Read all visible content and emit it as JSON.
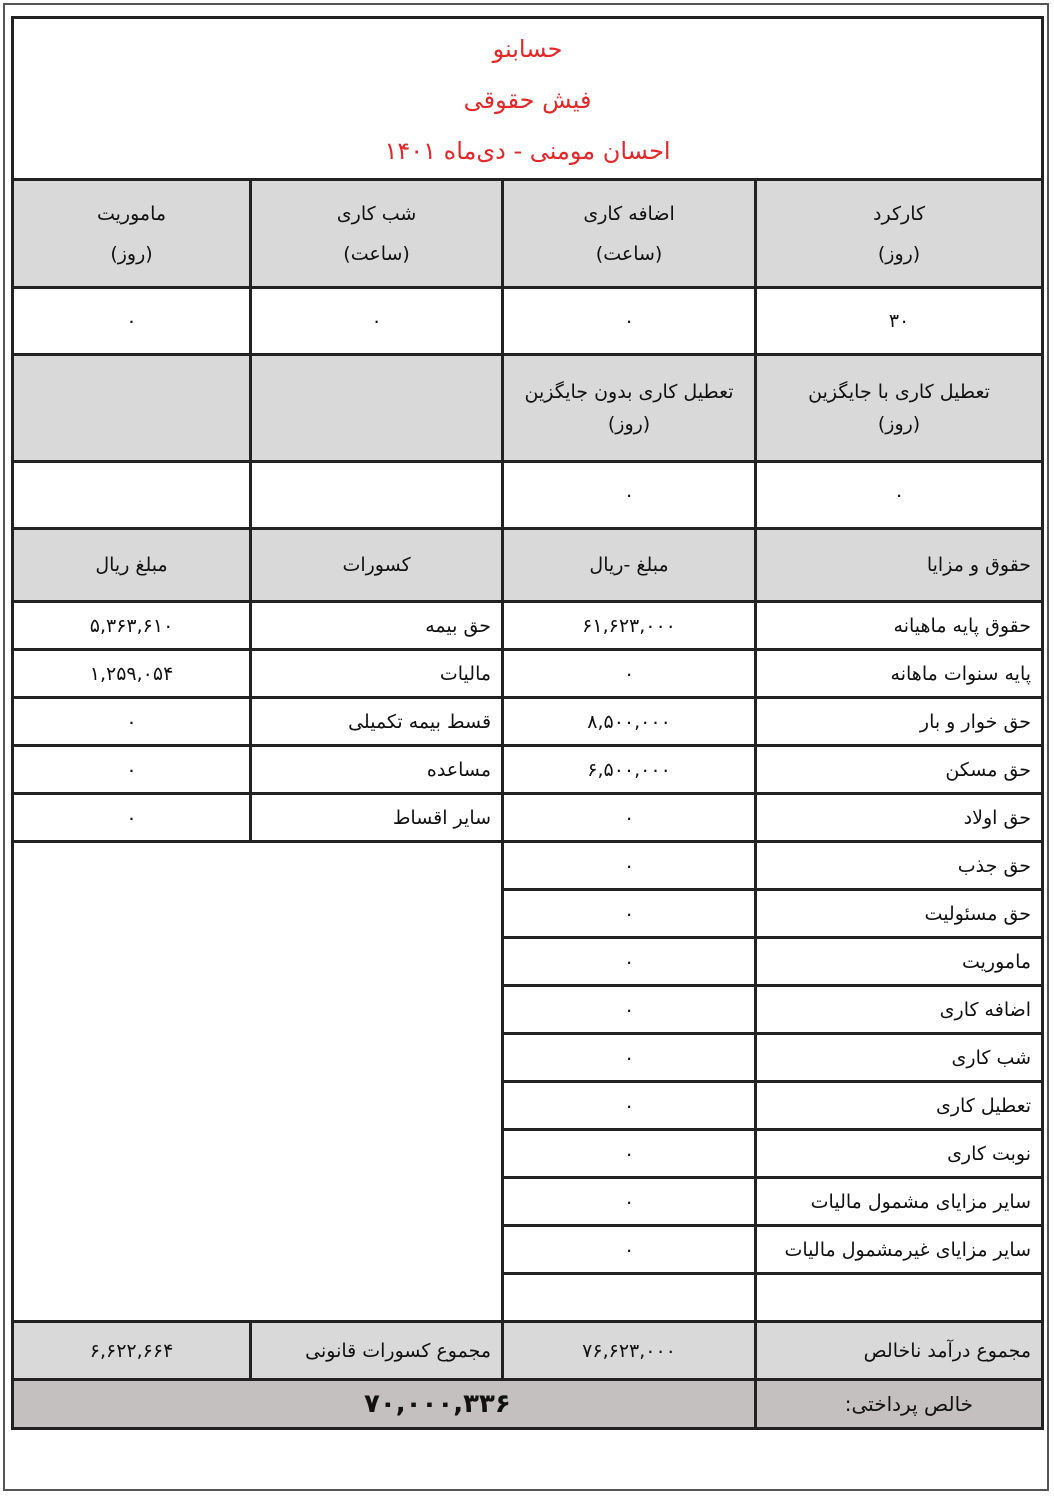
{
  "header": {
    "company": "حسابنو",
    "doc_title": "فیش حقوقی",
    "subtitle": "احسان مومنی - دی‌ماه ۱۴۰۱"
  },
  "attendance": {
    "columns": [
      {
        "label": "کارکرد",
        "unit": "(روز)",
        "value": "۳۰"
      },
      {
        "label": "اضافه کاری",
        "unit": "(ساعت)",
        "value": "۰"
      },
      {
        "label": "شب کاری",
        "unit": "(ساعت)",
        "value": "۰"
      },
      {
        "label": "ماموریت",
        "unit": "(روز)",
        "value": "۰"
      }
    ],
    "leave": [
      {
        "label": "تعطیل کاری با جایگزین",
        "unit": "(روز)",
        "value": "۰"
      },
      {
        "label": "تعطیل کاری بدون جایگزین",
        "unit": "(روز)",
        "value": "۰"
      }
    ]
  },
  "section_headers": {
    "benefits": "حقوق و مزایا",
    "benefits_amount": "مبلغ -ریال",
    "deductions": "کسورات",
    "deductions_amount": "مبلغ ریال"
  },
  "benefits": [
    {
      "label": "حقوق پایه ماهیانه",
      "amount": "۶۱,۶۲۳,۰۰۰"
    },
    {
      "label": "پایه سنوات ماهانه",
      "amount": "۰"
    },
    {
      "label": "حق خوار و بار",
      "amount": "۸,۵۰۰,۰۰۰"
    },
    {
      "label": "حق مسکن",
      "amount": "۶,۵۰۰,۰۰۰"
    },
    {
      "label": "حق اولاد",
      "amount": "۰"
    },
    {
      "label": "حق جذب",
      "amount": "۰"
    },
    {
      "label": "حق مسئولیت",
      "amount": "۰"
    },
    {
      "label": "ماموریت",
      "amount": "۰"
    },
    {
      "label": "اضافه کاری",
      "amount": "۰"
    },
    {
      "label": "شب کاری",
      "amount": "۰"
    },
    {
      "label": "تعطیل کاری",
      "amount": "۰"
    },
    {
      "label": "نوبت کاری",
      "amount": "۰"
    },
    {
      "label": "سایر مزایای مشمول مالیات",
      "amount": "۰"
    },
    {
      "label": "سایر مزایای غیرمشمول مالیات",
      "amount": "۰"
    }
  ],
  "deductions": [
    {
      "label": "حق بیمه",
      "amount": "۵,۳۶۳,۶۱۰"
    },
    {
      "label": "مالیات",
      "amount": "۱,۲۵۹,۰۵۴"
    },
    {
      "label": "قسط بیمه تکمیلی",
      "amount": "۰"
    },
    {
      "label": "مساعده",
      "amount": "۰"
    },
    {
      "label": "سایر اقساط",
      "amount": "۰"
    }
  ],
  "totals": {
    "gross_label": "مجموع درآمد ناخالص",
    "gross": "۷۶,۶۲۳,۰۰۰",
    "deductions_label": "مجموع کسورات قانونی",
    "deductions": "۶,۶۲۲,۶۶۴",
    "net_label": "خالص پرداختی:",
    "net": "۷۰,۰۰۰,۳۳۶"
  }
}
